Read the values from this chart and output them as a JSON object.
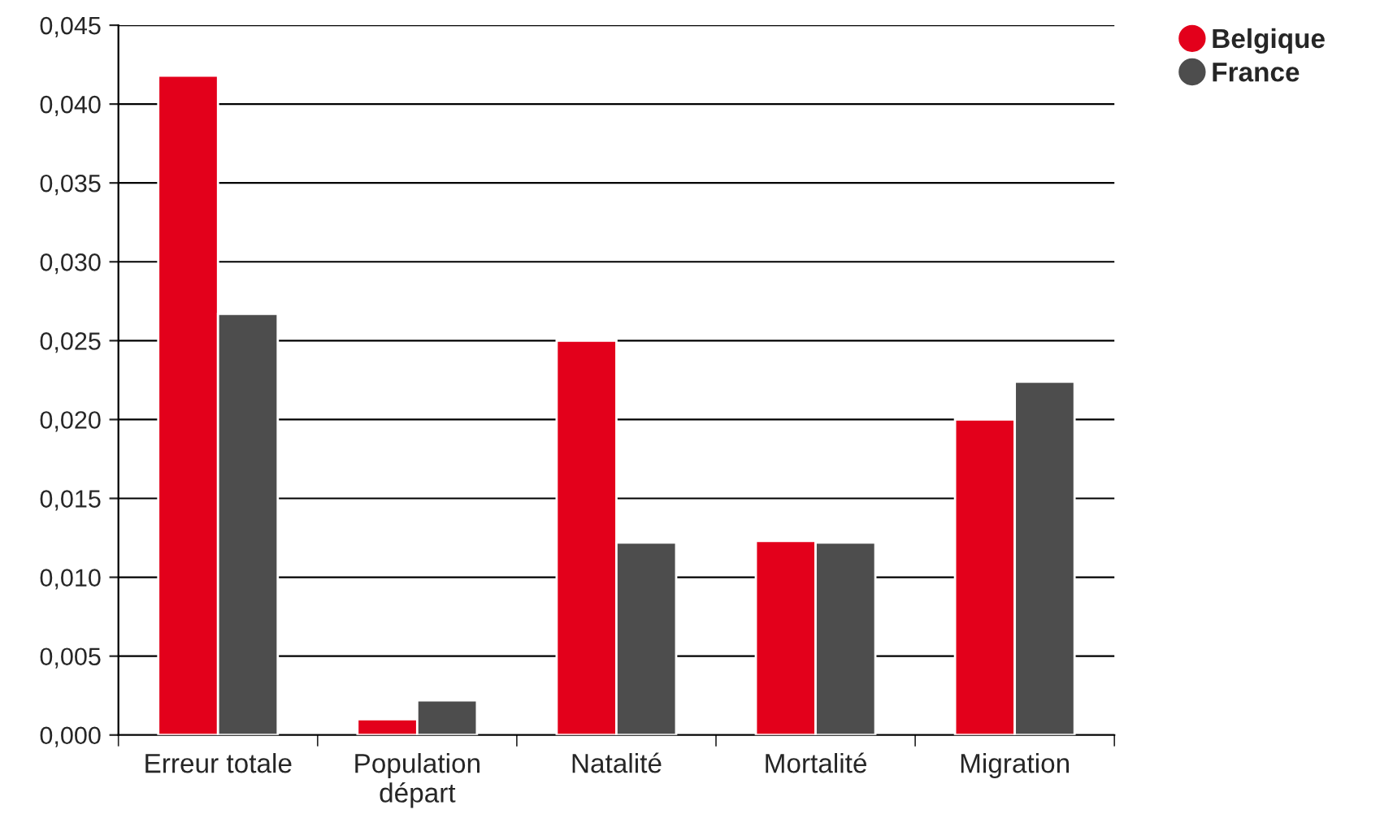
{
  "chart_data": {
    "type": "bar",
    "categories": [
      "Erreur totale",
      "Population\ndépart",
      "Natalité",
      "Mortalité",
      "Migration"
    ],
    "series": [
      {
        "name": "Belgique",
        "color": "#e3001b",
        "values": [
          0.0418,
          0.001,
          0.025,
          0.0123,
          0.02
        ]
      },
      {
        "name": "France",
        "color": "#4d4d4d",
        "values": [
          0.0267,
          0.0022,
          0.0122,
          0.0122,
          0.0224
        ]
      }
    ],
    "ylim": [
      0,
      0.045
    ],
    "yticks": [
      {
        "value": 0,
        "label": "0,000"
      },
      {
        "value": 0.005,
        "label": "0,005"
      },
      {
        "value": 0.01,
        "label": "0,010"
      },
      {
        "value": 0.015,
        "label": "0,015"
      },
      {
        "value": 0.02,
        "label": "0,020"
      },
      {
        "value": 0.025,
        "label": "0,025"
      },
      {
        "value": 0.03,
        "label": "0,030"
      },
      {
        "value": 0.035,
        "label": "0,035"
      },
      {
        "value": 0.04,
        "label": "0,040"
      },
      {
        "value": 0.045,
        "label": "0,045"
      }
    ],
    "grid": "y",
    "legend": "top right",
    "marker": "circle"
  }
}
